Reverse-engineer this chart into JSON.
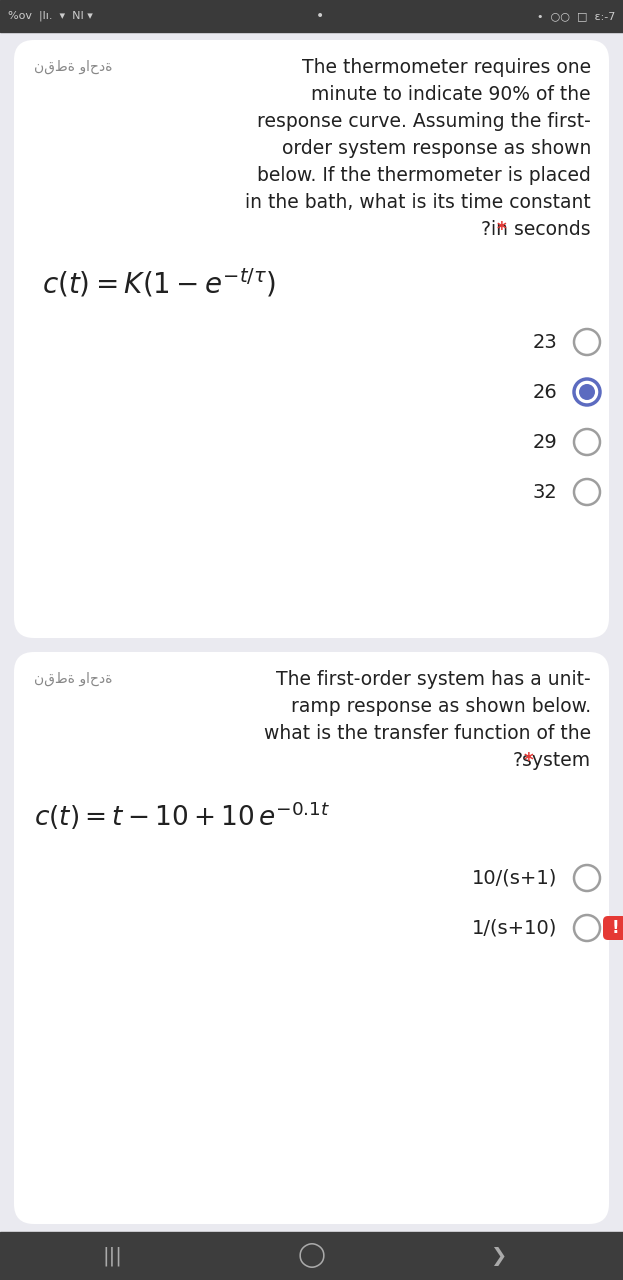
{
  "bg_color": "#eaeaf0",
  "card_color": "#ffffff",
  "status_bar_color": "#3a3a3a",
  "nav_bar_color": "#3d3d3d",
  "arabic_label": "نقطة واحدة",
  "q1_text_lines": [
    "The thermometer requires one",
    "minute to indicate 90% of the",
    "response curve. Assuming the first-",
    "order system response as shown",
    "below. If the thermometer is placed",
    "in the bath, what is its time constant",
    "?in seconds"
  ],
  "q1_formula_matplotlib": "$c(t) = K\\left(1 - e^{-t/\\tau}\\right)$",
  "q1_options": [
    "23",
    "26",
    "29",
    "32"
  ],
  "q1_selected": 1,
  "q2_text_lines": [
    "The first-order system has a unit-",
    "ramp response as shown below.",
    "what is the transfer function of the",
    "?system"
  ],
  "q2_formula_matplotlib": "$c(t) = t - 10 + 10\\, e^{-0.1t}$",
  "q2_options": [
    "10/(s+1)",
    "1/(s+10)"
  ],
  "q2_selected": -1,
  "star_color": "#e53935",
  "selected_circle_color": "#5c6bc0",
  "selected_inner_color": "#5c6bc0",
  "unselected_circle_color": "#9e9e9e",
  "text_color": "#212121",
  "arabic_color": "#888888",
  "font_size_body": 13.5,
  "font_size_formula": 20,
  "font_size_options": 14
}
